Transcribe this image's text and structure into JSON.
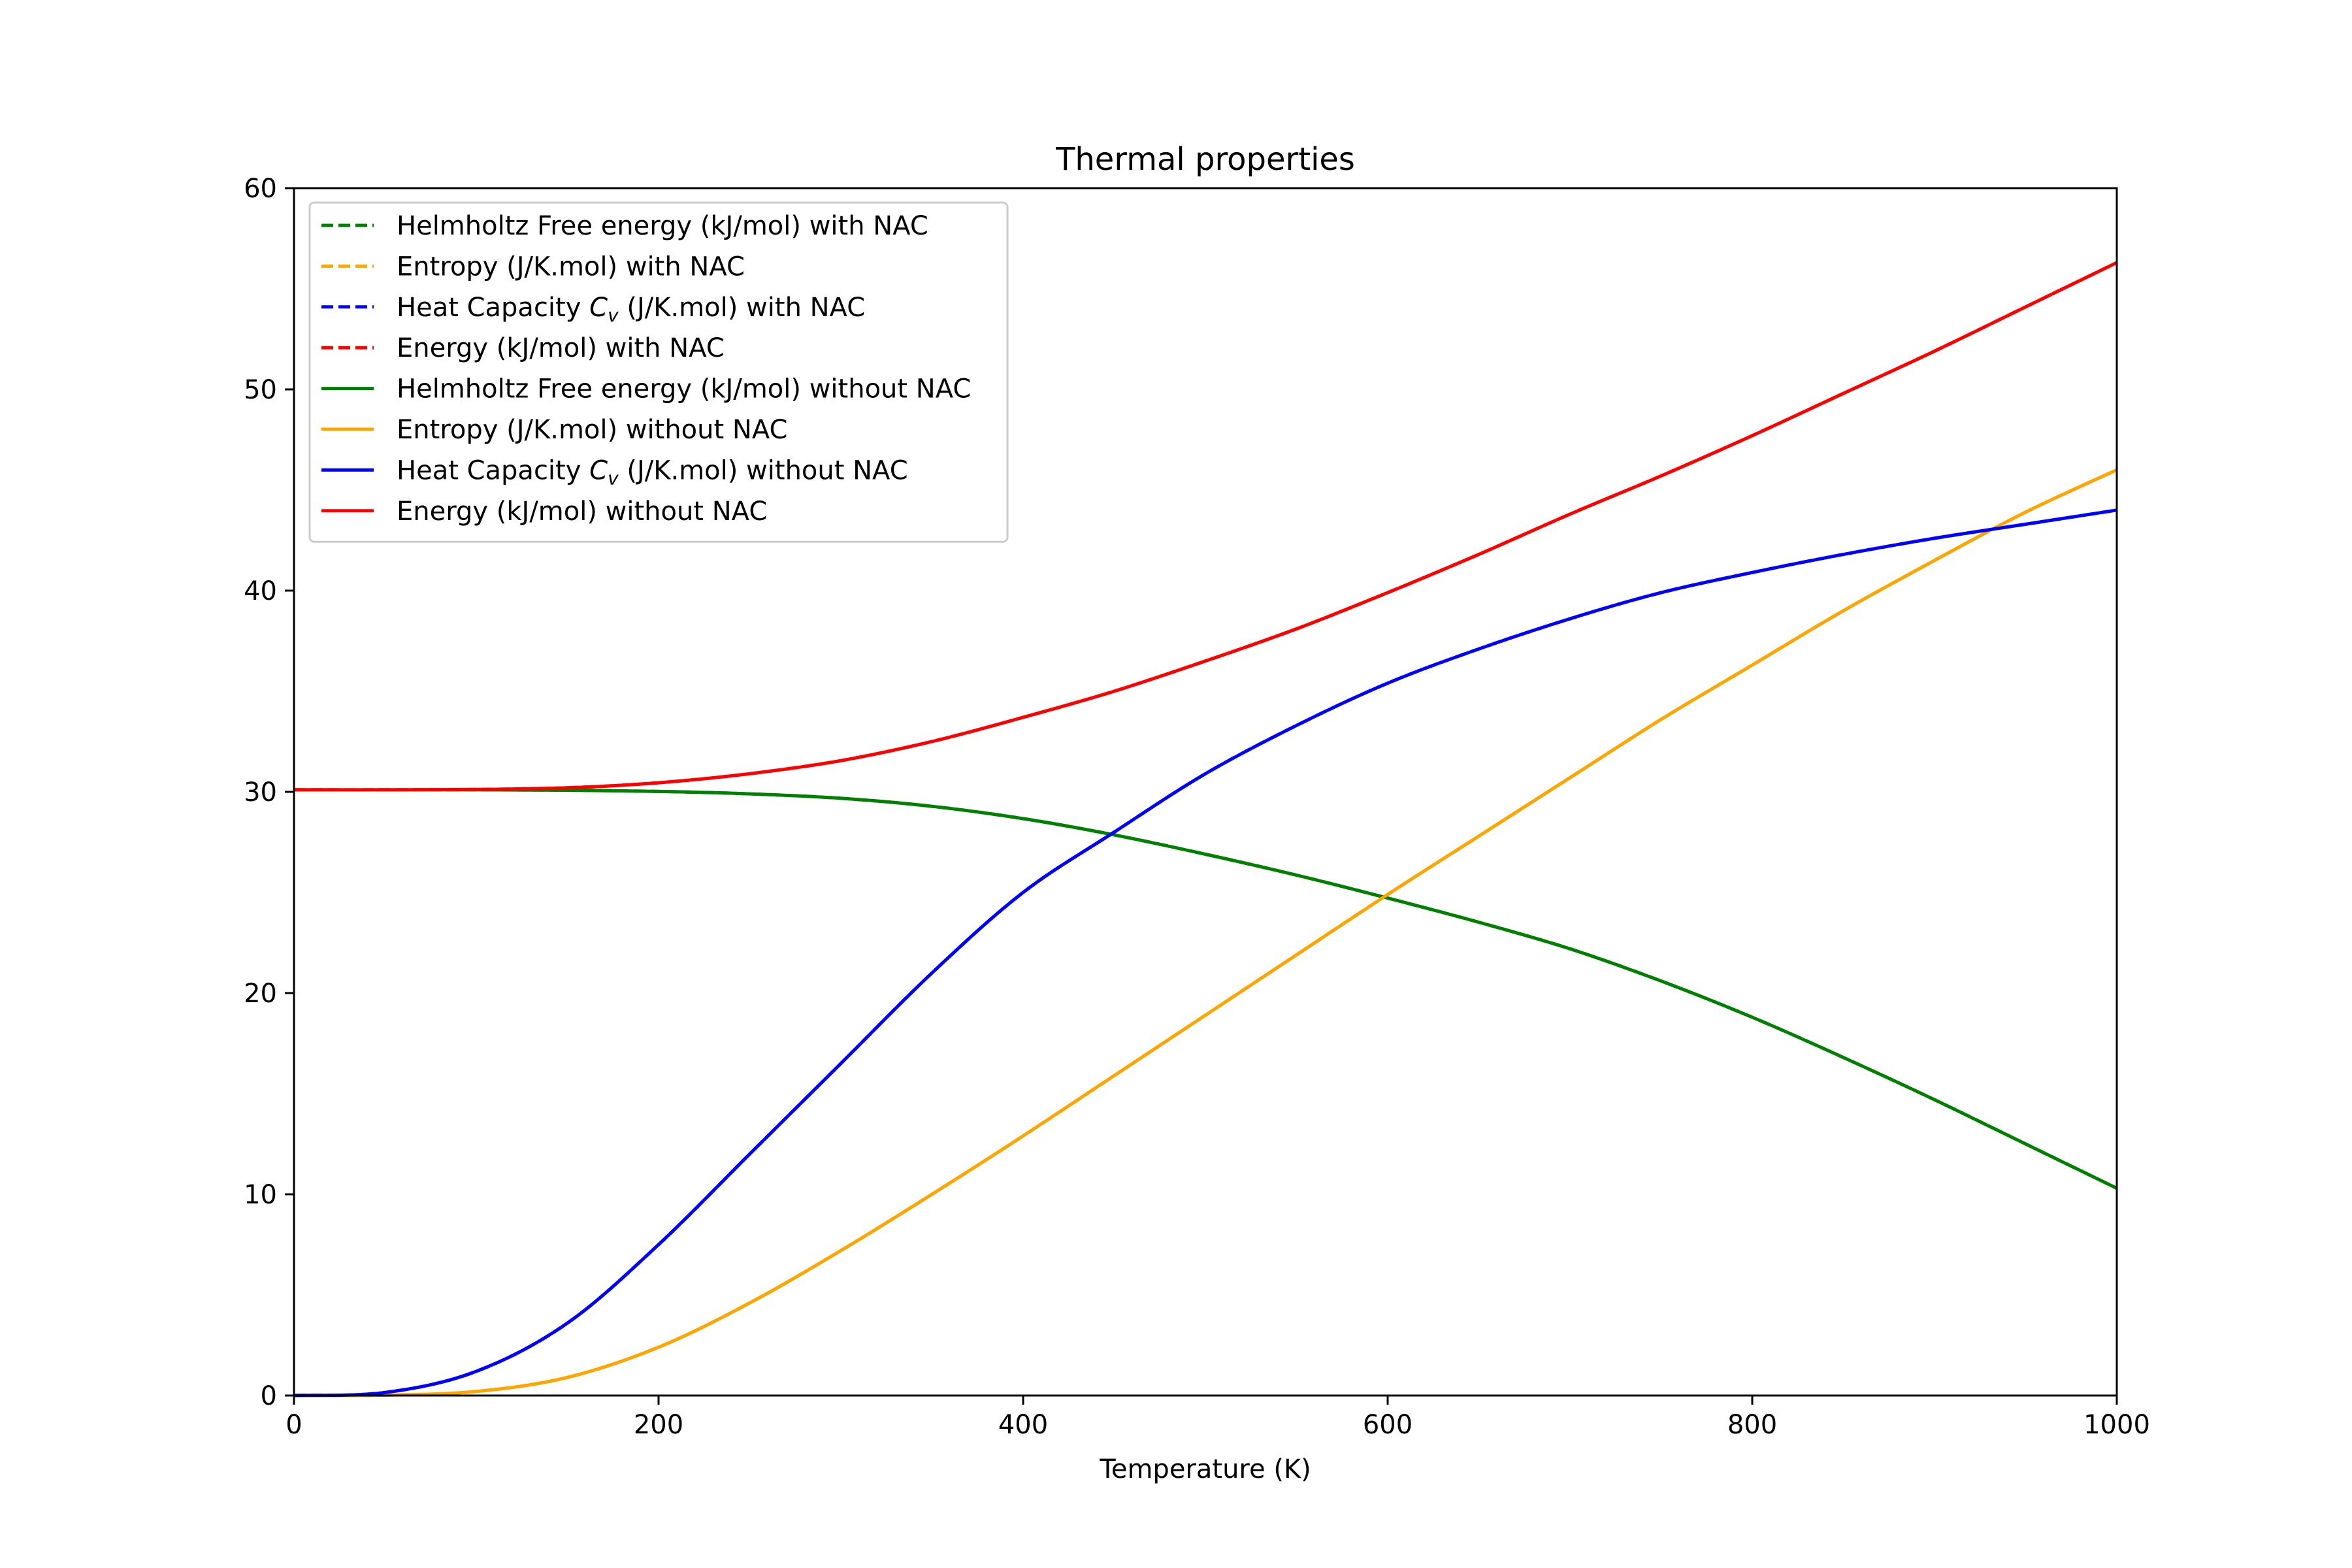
{
  "chart_data": {
    "type": "line",
    "title": "Thermal properties",
    "xlabel": "Temperature (K)",
    "ylabel": "",
    "xlim": [
      0,
      1000
    ],
    "ylim": [
      0,
      60
    ],
    "xticks": [
      "0",
      "200",
      "400",
      "600",
      "800",
      "1000"
    ],
    "yticks": [
      "0",
      "10",
      "20",
      "30",
      "40",
      "50",
      "60"
    ],
    "grid": false,
    "legend_position": "top-left",
    "x": [
      0,
      50,
      100,
      150,
      200,
      250,
      300,
      350,
      400,
      450,
      500,
      550,
      600,
      650,
      700,
      750,
      800,
      850,
      900,
      950,
      1000
    ],
    "series": [
      {
        "name": "Helmholtz Free energy (kJ/mol) with NAC",
        "label_pre": "Helmholtz Free energy (kJ/mol) with NAC",
        "label_cv": "",
        "label_post": "",
        "color": "#008000",
        "style": "dashed",
        "values": [
          30.1,
          30.1,
          30.1,
          30.08,
          30.02,
          29.9,
          29.68,
          29.28,
          28.67,
          27.86,
          26.9,
          25.86,
          24.72,
          23.52,
          22.2,
          20.6,
          18.8,
          16.8,
          14.7,
          12.5,
          10.3
        ]
      },
      {
        "name": "Entropy (J/K.mol) with NAC",
        "label_pre": "Entropy (J/K.mol) with NAC",
        "label_cv": "",
        "label_post": "",
        "color": "#FFA500",
        "style": "dashed",
        "values": [
          0,
          0.02,
          0.2,
          0.9,
          2.4,
          4.6,
          7.2,
          10.0,
          12.9,
          15.9,
          18.9,
          21.9,
          24.9,
          27.8,
          30.7,
          33.6,
          36.3,
          39.0,
          41.5,
          43.9,
          46.0
        ]
      },
      {
        "name": "Heat Capacity Cv (J/K.mol) with NAC",
        "label_pre": "Heat Capacity ",
        "label_cv": "C",
        "label_post": " (J/K.mol) with NAC",
        "color": "#0000FF",
        "style": "dashed",
        "values": [
          0,
          0.15,
          1.2,
          3.6,
          7.5,
          12.0,
          16.5,
          21.0,
          25.0,
          28.0,
          30.9,
          33.3,
          35.4,
          37.1,
          38.6,
          39.9,
          40.9,
          41.8,
          42.6,
          43.3,
          44.0
        ]
      },
      {
        "name": "Energy (kJ/mol) with NAC",
        "label_pre": "Energy (kJ/mol) with NAC",
        "label_cv": "",
        "label_post": "",
        "color": "#FF0000",
        "style": "dashed",
        "values": [
          30.1,
          30.1,
          30.12,
          30.2,
          30.45,
          30.9,
          31.55,
          32.5,
          33.7,
          35.0,
          36.5,
          38.1,
          39.9,
          41.8,
          43.8,
          45.7,
          47.7,
          49.8,
          51.9,
          54.1,
          56.3
        ]
      },
      {
        "name": "Helmholtz Free energy (kJ/mol) without NAC",
        "label_pre": "Helmholtz Free energy (kJ/mol) without NAC",
        "label_cv": "",
        "label_post": "",
        "color": "#008000",
        "style": "solid",
        "values": [
          30.1,
          30.1,
          30.1,
          30.08,
          30.02,
          29.9,
          29.68,
          29.28,
          28.67,
          27.86,
          26.9,
          25.86,
          24.72,
          23.52,
          22.2,
          20.6,
          18.8,
          16.8,
          14.7,
          12.5,
          10.3
        ]
      },
      {
        "name": "Entropy (J/K.mol) without NAC",
        "label_pre": "Entropy (J/K.mol) without NAC",
        "label_cv": "",
        "label_post": "",
        "color": "#FFA500",
        "style": "solid",
        "values": [
          0,
          0.02,
          0.2,
          0.9,
          2.4,
          4.6,
          7.2,
          10.0,
          12.9,
          15.9,
          18.9,
          21.9,
          24.9,
          27.8,
          30.7,
          33.6,
          36.3,
          39.0,
          41.5,
          43.9,
          46.0
        ]
      },
      {
        "name": "Heat Capacity Cv (J/K.mol) without NAC",
        "label_pre": "Heat Capacity ",
        "label_cv": "C",
        "label_post": " (J/K.mol) without NAC",
        "color": "#0000FF",
        "style": "solid",
        "values": [
          0,
          0.15,
          1.2,
          3.6,
          7.5,
          12.0,
          16.5,
          21.0,
          25.0,
          28.0,
          30.9,
          33.3,
          35.4,
          37.1,
          38.6,
          39.9,
          40.9,
          41.8,
          42.6,
          43.3,
          44.0
        ]
      },
      {
        "name": "Energy (kJ/mol) without NAC",
        "label_pre": "Energy (kJ/mol) without NAC",
        "label_cv": "",
        "label_post": "",
        "color": "#FF0000",
        "style": "solid",
        "values": [
          30.1,
          30.1,
          30.12,
          30.2,
          30.45,
          30.9,
          31.55,
          32.5,
          33.7,
          35.0,
          36.5,
          38.1,
          39.9,
          41.8,
          43.8,
          45.7,
          47.7,
          49.8,
          51.9,
          54.1,
          56.3
        ]
      }
    ]
  }
}
